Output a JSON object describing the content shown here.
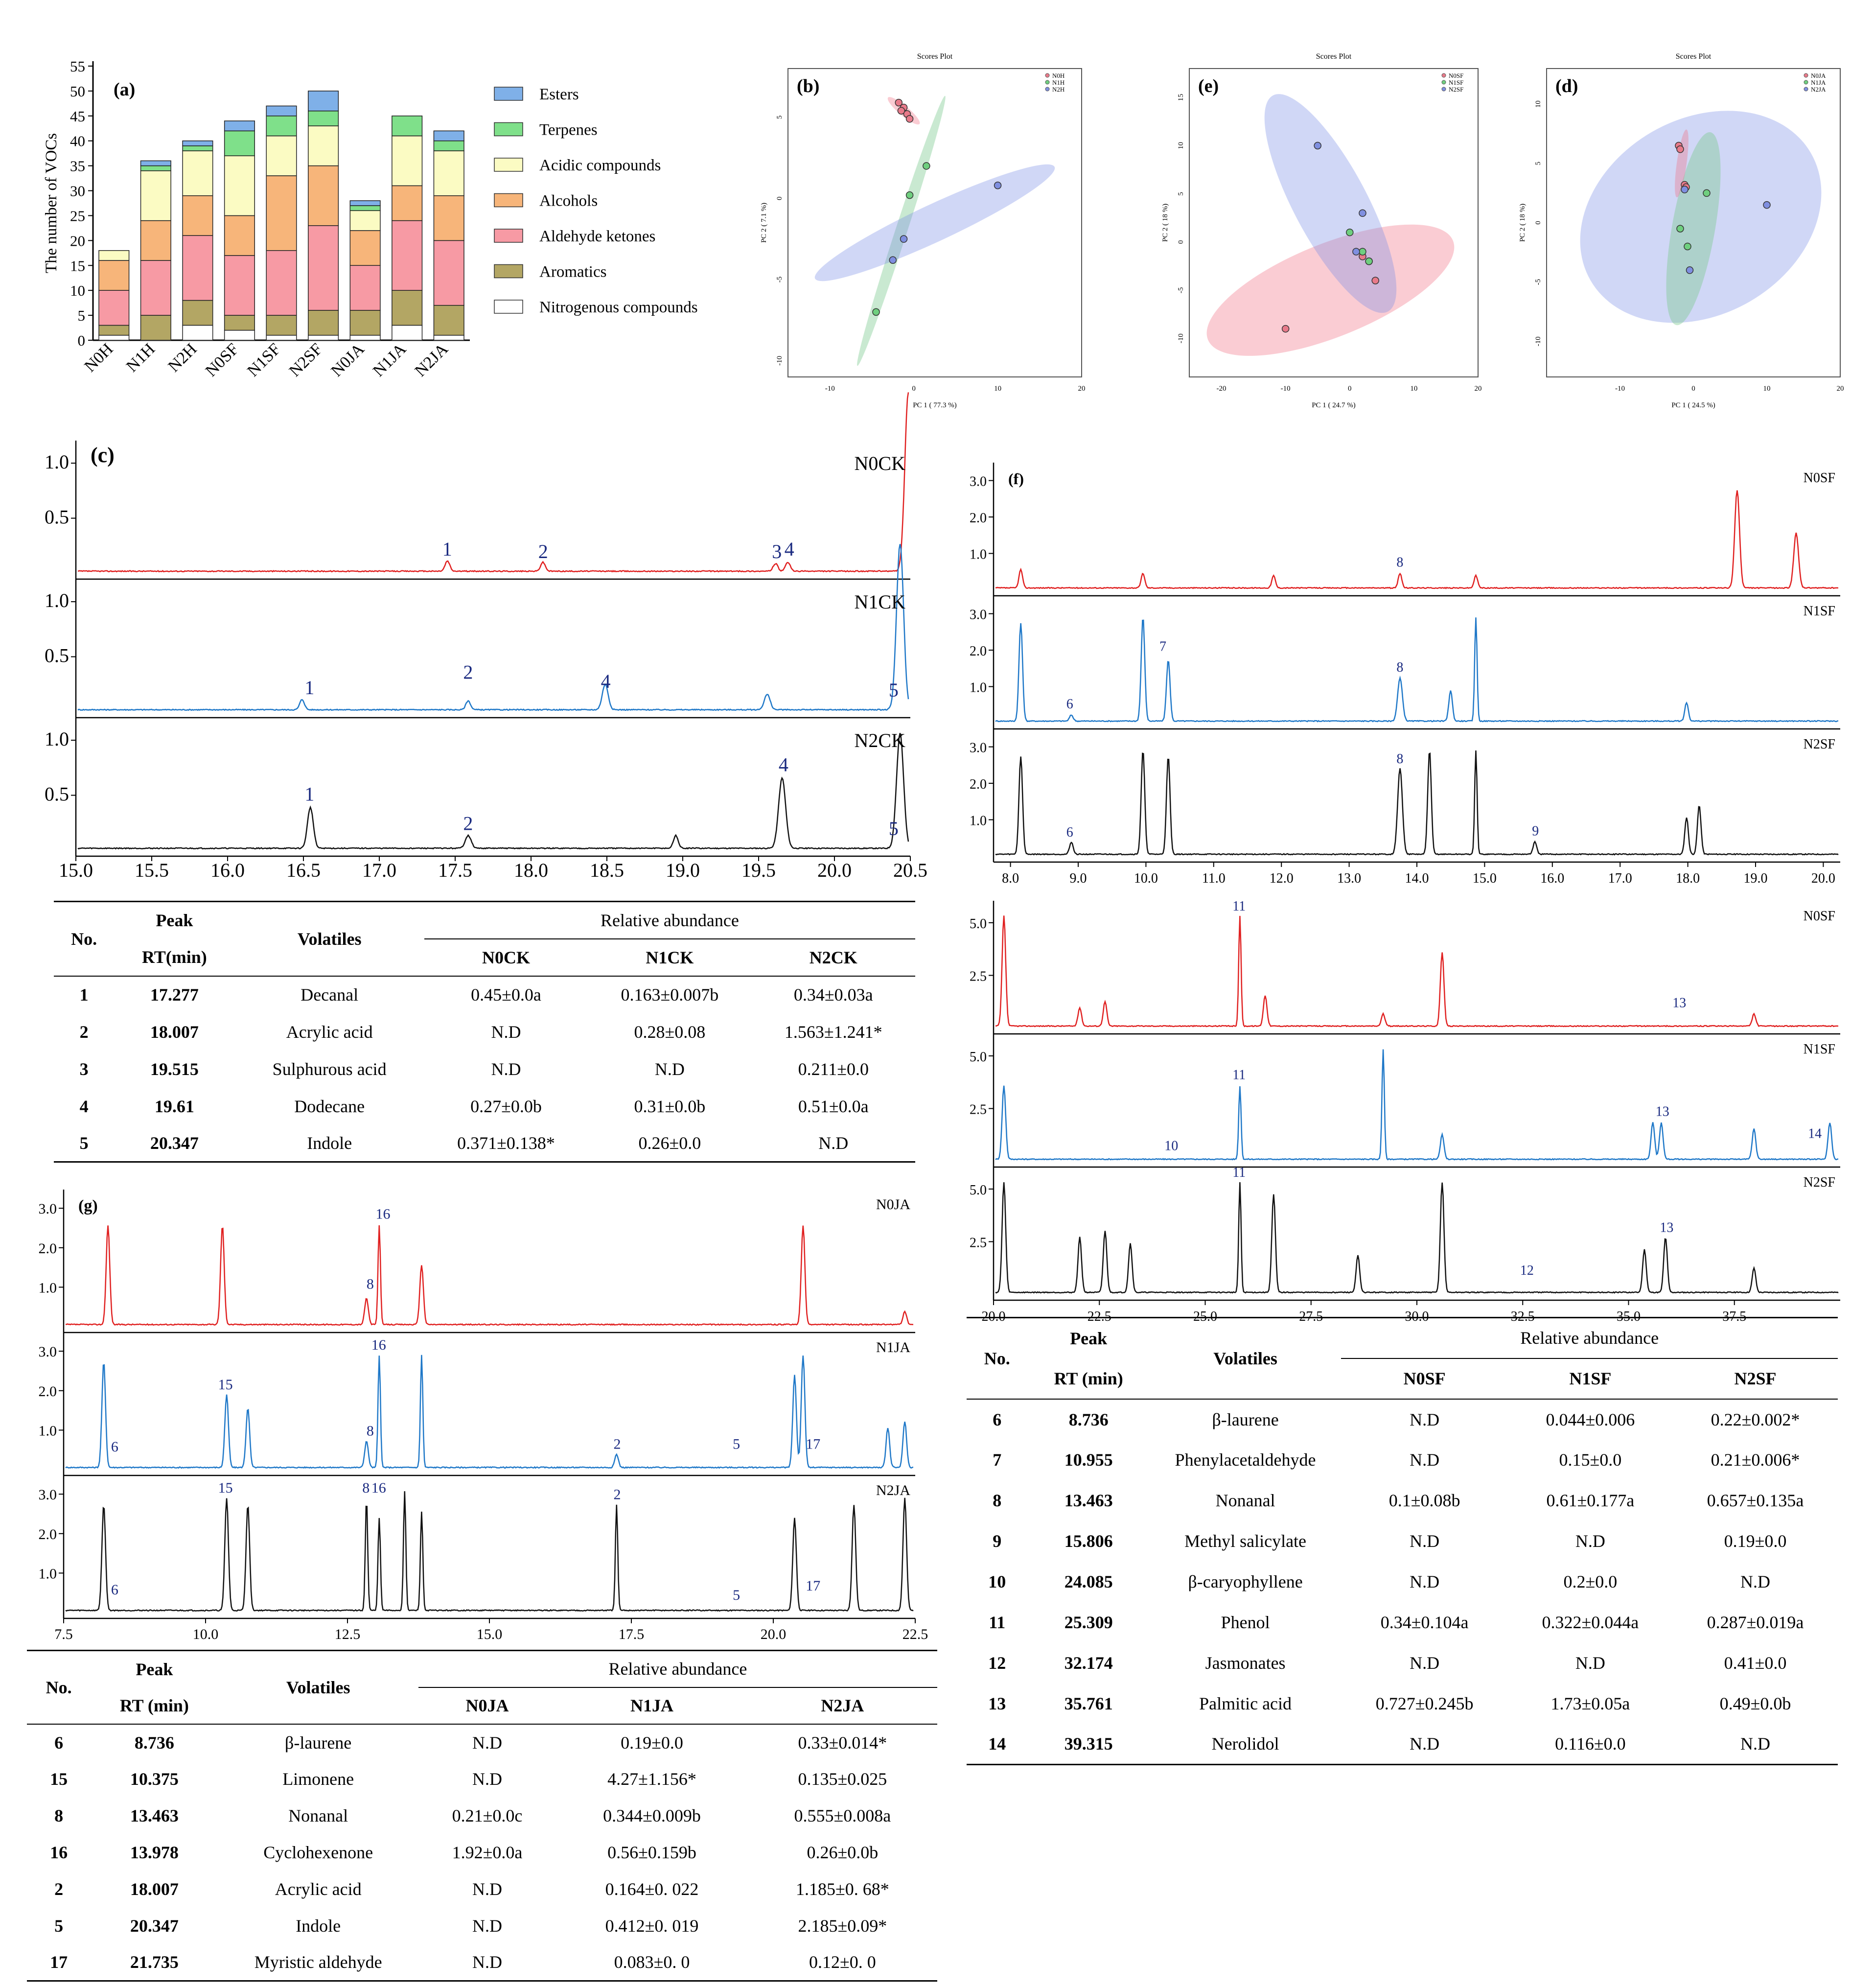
{
  "panel_a": {
    "label": "(a)",
    "ylabel": "The number of VOCs",
    "yticks": [
      "0",
      "5",
      "10",
      "15",
      "20",
      "25",
      "30",
      "35",
      "40",
      "45",
      "50",
      "55"
    ],
    "categories": [
      "N0H",
      "N1H",
      "N2H",
      "N0SF",
      "N1SF",
      "N2SF",
      "N0JA",
      "N1JA",
      "N2JA"
    ],
    "legend": [
      {
        "name": "Esters",
        "color": "#7fb0e8"
      },
      {
        "name": "Terpenes",
        "color": "#7fe08a"
      },
      {
        "name": "Acidic compounds",
        "color": "#fbfbc3"
      },
      {
        "name": "Alcohols",
        "color": "#f7b57a"
      },
      {
        "name": "Aldehyde ketones",
        "color": "#f79aa4"
      },
      {
        "name": "Aromatics",
        "color": "#b3a664"
      },
      {
        "name": "Nitrogenous compounds",
        "color": "#ffffff"
      }
    ]
  },
  "pca": [
    {
      "label": "(b)",
      "title": "Scores Plot",
      "xlabel": "PC 1 ( 77.3 %)",
      "ylabel": "PC 2 ( 7.1 %)",
      "legend": [
        "N0H",
        "N1H",
        "N2H"
      ],
      "xticks": [
        "-10",
        "0",
        "10",
        "20"
      ],
      "yticks": [
        "5",
        "0",
        "-5",
        "-10"
      ]
    },
    {
      "label": "(e)",
      "title": "Scores Plot",
      "xlabel": "PC 1 ( 24.7 %)",
      "ylabel": "PC 2 ( 18 %)",
      "legend": [
        "N0SF",
        "N1SF",
        "N2SF"
      ],
      "xticks": [
        "-20",
        "-10",
        "0",
        "10",
        "20"
      ],
      "yticks": [
        "15",
        "10",
        "5",
        "0",
        "-5",
        "-10"
      ]
    },
    {
      "label": "(d)",
      "title": "Scores Plot",
      "xlabel": "PC 1 ( 24.5 %)",
      "ylabel": "PC 2 ( 18 %)",
      "legend": [
        "N0JA",
        "N1JA",
        "N2JA"
      ],
      "xticks": [
        "-10",
        "0",
        "10",
        "20"
      ],
      "yticks": [
        "10",
        "5",
        "0",
        "-5",
        "-10"
      ]
    }
  ],
  "panel_c": {
    "label": "(c)",
    "xticks": [
      "15.0",
      "15.5",
      "16.0",
      "16.5",
      "17.0",
      "17.5",
      "18.0",
      "18.5",
      "19.0",
      "19.5",
      "20.0",
      "20.5"
    ],
    "traces": [
      {
        "name": "N0CK",
        "color": "#e02020",
        "yticks": [
          "0.5",
          "1.0"
        ],
        "peaks": [
          "1",
          "2",
          "3",
          "4"
        ]
      },
      {
        "name": "N1CK",
        "color": "#1f78c8",
        "yticks": [
          "0.5",
          "1.0"
        ],
        "peaks": [
          "1",
          "2",
          "4",
          "5"
        ]
      },
      {
        "name": "N2CK",
        "color": "#111111",
        "yticks": [
          "0.5",
          "1.0"
        ],
        "peaks": [
          "1",
          "2",
          "4",
          "5"
        ]
      }
    ]
  },
  "panel_f": {
    "label": "(f)",
    "top_xticks": [
      "8.0",
      "9.0",
      "10.0",
      "11.0",
      "12.0",
      "13.0",
      "14.0",
      "15.0",
      "16.0",
      "17.0",
      "18.0",
      "19.0",
      "20.0"
    ],
    "bottom_xticks": [
      "20.0",
      "22.5",
      "25.0",
      "27.5",
      "30.0",
      "32.5",
      "35.0",
      "37.5"
    ],
    "top_traces": [
      {
        "name": "N0SF",
        "color": "#e02020",
        "yticks": [
          "1.0",
          "2.0",
          "3.0"
        ],
        "peaks": [
          "8"
        ]
      },
      {
        "name": "N1SF",
        "color": "#1f78c8",
        "yticks": [
          "1.0",
          "2.0",
          "3.0"
        ],
        "peaks": [
          "6",
          "7",
          "8"
        ]
      },
      {
        "name": "N2SF",
        "color": "#111111",
        "yticks": [
          "1.0",
          "2.0",
          "3.0"
        ],
        "peaks": [
          "6",
          "8",
          "9"
        ]
      }
    ],
    "bottom_traces": [
      {
        "name": "N0SF",
        "color": "#e02020",
        "yticks": [
          "2.5",
          "5.0"
        ],
        "peaks": [
          "11",
          "13"
        ]
      },
      {
        "name": "N1SF",
        "color": "#1f78c8",
        "yticks": [
          "2.5",
          "5.0"
        ],
        "peaks": [
          "10",
          "11",
          "13",
          "14"
        ]
      },
      {
        "name": "N2SF",
        "color": "#111111",
        "yticks": [
          "2.5",
          "5.0"
        ],
        "peaks": [
          "11",
          "12",
          "13"
        ]
      }
    ]
  },
  "panel_g": {
    "label": "(g)",
    "xticks": [
      "7.5",
      "10.0",
      "12.5",
      "15.0",
      "17.5",
      "20.0",
      "22.5"
    ],
    "traces": [
      {
        "name": "N0JA",
        "color": "#e02020",
        "yticks": [
          "1.0",
          "2.0",
          "3.0"
        ],
        "peaks": [
          "8",
          "16"
        ]
      },
      {
        "name": "N1JA",
        "color": "#1f78c8",
        "yticks": [
          "1.0",
          "2.0",
          "3.0"
        ],
        "peaks": [
          "6",
          "15",
          "8",
          "16",
          "2",
          "5",
          "17"
        ]
      },
      {
        "name": "N2JA",
        "color": "#111111",
        "yticks": [
          "1.0",
          "2.0",
          "3.0"
        ],
        "peaks": [
          "6",
          "15",
          "8",
          "16",
          "2",
          "5",
          "17"
        ]
      }
    ]
  },
  "table_ck": {
    "h_no": "No.",
    "h_peak": "Peak",
    "h_rt": "RT(min)",
    "h_vol": "Volatiles",
    "h_ra": "Relative abundance",
    "cols": [
      "N0CK",
      "N1CK",
      "N2CK"
    ],
    "rows": [
      [
        "1",
        "17.277",
        "Decanal",
        "0.45±0.0a",
        "0.163±0.007b",
        "0.34±0.03a"
      ],
      [
        "2",
        "18.007",
        "Acrylic acid",
        "N.D",
        "0.28±0.08",
        "1.563±1.241*"
      ],
      [
        "3",
        "19.515",
        "Sulphurous acid",
        "N.D",
        "N.D",
        "0.211±0.0"
      ],
      [
        "4",
        "19.61",
        "Dodecane",
        "0.27±0.0b",
        "0.31±0.0b",
        "0.51±0.0a"
      ],
      [
        "5",
        "20.347",
        "Indole",
        "0.371±0.138*",
        "0.26±0.0",
        "N.D"
      ]
    ]
  },
  "table_sf": {
    "h_no": "No.",
    "h_peak": "Peak",
    "h_rt": "RT (min)",
    "h_vol": "Volatiles",
    "h_ra": "Relative abundance",
    "cols": [
      "N0SF",
      "N1SF",
      "N2SF"
    ],
    "rows": [
      [
        "6",
        "8.736",
        "β-laurene",
        "N.D",
        "0.044±0.006",
        "0.22±0.002*"
      ],
      [
        "7",
        "10.955",
        "Phenylacetaldehyde",
        "N.D",
        "0.15±0.0",
        "0.21±0.006*"
      ],
      [
        "8",
        "13.463",
        "Nonanal",
        "0.1±0.08b",
        "0.61±0.177a",
        "0.657±0.135a"
      ],
      [
        "9",
        "15.806",
        "Methyl salicylate",
        "N.D",
        "N.D",
        "0.19±0.0"
      ],
      [
        "10",
        "24.085",
        "β-caryophyllene",
        "N.D",
        "0.2±0.0",
        "N.D"
      ],
      [
        "11",
        "25.309",
        "Phenol",
        "0.34±0.104a",
        "0.322±0.044a",
        "0.287±0.019a"
      ],
      [
        "12",
        "32.174",
        "Jasmonates",
        "N.D",
        "N.D",
        "0.41±0.0"
      ],
      [
        "13",
        "35.761",
        "Palmitic acid",
        "0.727±0.245b",
        "1.73±0.05a",
        "0.49±0.0b"
      ],
      [
        "14",
        "39.315",
        "Nerolidol",
        "N.D",
        "0.116±0.0",
        "N.D"
      ]
    ]
  },
  "table_ja": {
    "h_no": "No.",
    "h_peak": "Peak",
    "h_rt": "RT (min)",
    "h_vol": "Volatiles",
    "h_ra": "Relative abundance",
    "cols": [
      "N0JA",
      "N1JA",
      "N2JA"
    ],
    "rows": [
      [
        "6",
        "8.736",
        "β-laurene",
        "N.D",
        "0.19±0.0",
        "0.33±0.014*"
      ],
      [
        "15",
        "10.375",
        "Limonene",
        "N.D",
        "4.27±1.156*",
        "0.135±0.025"
      ],
      [
        "8",
        "13.463",
        "Nonanal",
        "0.21±0.0c",
        "0.344±0.009b",
        "0.555±0.008a"
      ],
      [
        "16",
        "13.978",
        "Cyclohexenone",
        "1.92±0.0a",
        "0.56±0.159b",
        "0.26±0.0b"
      ],
      [
        "2",
        "18.007",
        "Acrylic acid",
        "N.D",
        "0.164±0. 022",
        "1.185±0. 68*"
      ],
      [
        "5",
        "20.347",
        "Indole",
        "N.D",
        "0.412±0. 019",
        "2.185±0.09*"
      ],
      [
        "17",
        "21.735",
        "Myristic aldehyde",
        "N.D",
        "0.083±0. 0",
        "0.12±0. 0"
      ]
    ]
  },
  "chart_data": [
    {
      "type": "bar",
      "stacked": true,
      "title": "",
      "ylabel": "The number of VOCs",
      "xlabel": "",
      "ylim": [
        0,
        55
      ],
      "categories": [
        "N0H",
        "N1H",
        "N2H",
        "N0SF",
        "N1SF",
        "N2SF",
        "N0JA",
        "N1JA",
        "N2JA"
      ],
      "series": [
        {
          "name": "Nitrogenous compounds",
          "values": [
            1,
            0,
            3,
            2,
            1,
            1,
            1,
            3,
            1
          ]
        },
        {
          "name": "Aromatics",
          "values": [
            2,
            5,
            5,
            3,
            4,
            5,
            5,
            7,
            6
          ]
        },
        {
          "name": "Aldehyde ketones",
          "values": [
            7,
            11,
            13,
            12,
            13,
            17,
            9,
            14,
            13
          ]
        },
        {
          "name": "Alcohols",
          "values": [
            6,
            8,
            8,
            8,
            15,
            12,
            7,
            7,
            9
          ]
        },
        {
          "name": "Acidic compounds",
          "values": [
            2,
            10,
            9,
            12,
            8,
            8,
            4,
            10,
            9
          ]
        },
        {
          "name": "Terpenes",
          "values": [
            0,
            1,
            1,
            5,
            4,
            3,
            1,
            4,
            2
          ]
        },
        {
          "name": "Esters",
          "values": [
            0,
            1,
            1,
            2,
            2,
            4,
            1,
            0,
            2
          ]
        }
      ]
    },
    {
      "type": "scatter",
      "title": "Scores Plot",
      "xlabel": "PC 1 ( 77.3 %)",
      "ylabel": "PC 2 ( 7.1 %)",
      "xlim": [
        -15,
        20
      ],
      "ylim": [
        -11,
        8
      ],
      "series": [
        {
          "name": "N0H",
          "x": [
            -1.8,
            -1.2,
            -0.8,
            -0.5,
            -1.5
          ],
          "y": [
            5.9,
            5.6,
            5.2,
            4.9,
            5.4
          ]
        },
        {
          "name": "N1H",
          "x": [
            -4.5,
            -0.5,
            1.5
          ],
          "y": [
            -7.0,
            0.2,
            2.0
          ]
        },
        {
          "name": "N2H",
          "x": [
            -2.5,
            -1.2,
            10.0
          ],
          "y": [
            -3.8,
            -2.5,
            0.8
          ]
        }
      ]
    },
    {
      "type": "scatter",
      "title": "Scores Plot",
      "xlabel": "PC 1 ( 24.7 %)",
      "ylabel": "PC 2 ( 18 %)",
      "xlim": [
        -25,
        20
      ],
      "ylim": [
        -14,
        18
      ],
      "series": [
        {
          "name": "N0SF",
          "x": [
            -10,
            2,
            4,
            3
          ],
          "y": [
            -9,
            -1.5,
            -4,
            -2
          ]
        },
        {
          "name": "N1SF",
          "x": [
            0,
            3,
            2
          ],
          "y": [
            1,
            -2,
            -1
          ]
        },
        {
          "name": "N2SF",
          "x": [
            -5,
            2,
            1
          ],
          "y": [
            10,
            3,
            -1
          ]
        }
      ]
    },
    {
      "type": "scatter",
      "title": "Scores Plot",
      "xlabel": "PC 1 ( 24.5 %)",
      "ylabel": "PC 2 ( 18 %)",
      "xlim": [
        -20,
        20
      ],
      "ylim": [
        -13,
        13
      ],
      "series": [
        {
          "name": "N0JA",
          "x": [
            -2,
            -1.8,
            -1.2,
            -1.0
          ],
          "y": [
            6.5,
            6.2,
            3.2,
            3.0
          ]
        },
        {
          "name": "N1JA",
          "x": [
            -1.8,
            -0.8,
            1.8
          ],
          "y": [
            -0.5,
            -2.0,
            2.5
          ]
        },
        {
          "name": "N2JA",
          "x": [
            -1.2,
            -0.5,
            10.0
          ],
          "y": [
            2.8,
            -4.0,
            1.5
          ]
        }
      ]
    }
  ]
}
